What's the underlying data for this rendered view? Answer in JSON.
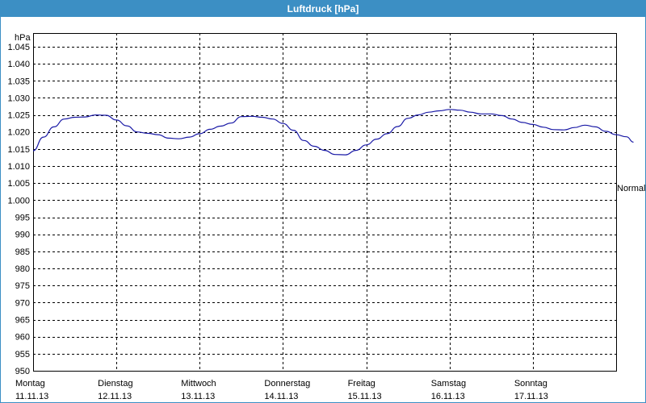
{
  "window": {
    "title": "Luftdruck [hPa]"
  },
  "chart_data": {
    "type": "line",
    "title": "Luftdruck [hPa]",
    "ylabel": "hPa",
    "ylim": [
      950,
      1049
    ],
    "yticks": [
      {
        "value": 1045,
        "label": "1.045"
      },
      {
        "value": 1040,
        "label": "1.040"
      },
      {
        "value": 1035,
        "label": "1.035"
      },
      {
        "value": 1030,
        "label": "1.030"
      },
      {
        "value": 1025,
        "label": "1.025"
      },
      {
        "value": 1020,
        "label": "1.020"
      },
      {
        "value": 1015,
        "label": "1.015"
      },
      {
        "value": 1010,
        "label": "1.010"
      },
      {
        "value": 1005,
        "label": "1.005"
      },
      {
        "value": 1000,
        "label": "1.000"
      },
      {
        "value": 995,
        "label": "995"
      },
      {
        "value": 990,
        "label": "990"
      },
      {
        "value": 985,
        "label": "985"
      },
      {
        "value": 980,
        "label": "980"
      },
      {
        "value": 975,
        "label": "975"
      },
      {
        "value": 970,
        "label": "970"
      },
      {
        "value": 965,
        "label": "965"
      },
      {
        "value": 960,
        "label": "960"
      },
      {
        "value": 955,
        "label": "955"
      },
      {
        "value": 950,
        "label": "950"
      }
    ],
    "xlim": [
      "2013-11-11",
      "2013-11-18"
    ],
    "days": [
      {
        "weekday": "Montag",
        "date": "11.11.13"
      },
      {
        "weekday": "Dienstag",
        "date": "12.11.13"
      },
      {
        "weekday": "Mittwoch",
        "date": "13.11.13"
      },
      {
        "weekday": "Donnerstag",
        "date": "14.11.13"
      },
      {
        "weekday": "Freitag",
        "date": "15.11.13"
      },
      {
        "weekday": "Samstag",
        "date": "16.11.13"
      },
      {
        "weekday": "Sonntag",
        "date": "17.11.13"
      }
    ],
    "reference_line": {
      "label": "Normal",
      "value": 1005
    },
    "grid": true,
    "series": [
      {
        "color": "#1a1aa6",
        "points": [
          [
            "2013-11-11 00:00",
            1014.5
          ],
          [
            "2013-11-11 03:00",
            1018.5
          ],
          [
            "2013-11-11 06:00",
            1021.5
          ],
          [
            "2013-11-11 09:00",
            1023.8
          ],
          [
            "2013-11-11 12:00",
            1024.3
          ],
          [
            "2013-11-11 15:00",
            1024.4
          ],
          [
            "2013-11-11 18:00",
            1025.0
          ],
          [
            "2013-11-11 21:00",
            1024.9
          ],
          [
            "2013-11-12 00:00",
            1023.5
          ],
          [
            "2013-11-12 03:00",
            1021.8
          ],
          [
            "2013-11-12 06:00",
            1020.0
          ],
          [
            "2013-11-12 09:00",
            1019.6
          ],
          [
            "2013-11-12 12:00",
            1019.2
          ],
          [
            "2013-11-12 15:00",
            1018.2
          ],
          [
            "2013-11-12 18:00",
            1018.0
          ],
          [
            "2013-11-12 21:00",
            1018.5
          ],
          [
            "2013-11-13 00:00",
            1019.5
          ],
          [
            "2013-11-13 03:00",
            1020.8
          ],
          [
            "2013-11-13 06:00",
            1021.7
          ],
          [
            "2013-11-13 09:00",
            1022.6
          ],
          [
            "2013-11-13 12:00",
            1024.5
          ],
          [
            "2013-11-13 15:00",
            1024.6
          ],
          [
            "2013-11-13 18:00",
            1024.3
          ],
          [
            "2013-11-13 21:00",
            1023.8
          ],
          [
            "2013-11-14 00:00",
            1022.5
          ],
          [
            "2013-11-14 03:00",
            1020.5
          ],
          [
            "2013-11-14 06:00",
            1017.5
          ],
          [
            "2013-11-14 09:00",
            1015.8
          ],
          [
            "2013-11-14 12:00",
            1014.6
          ],
          [
            "2013-11-14 15:00",
            1013.4
          ],
          [
            "2013-11-14 18:00",
            1013.3
          ],
          [
            "2013-11-14 21:00",
            1014.6
          ],
          [
            "2013-11-15 00:00",
            1016.2
          ],
          [
            "2013-11-15 03:00",
            1017.9
          ],
          [
            "2013-11-15 06:00",
            1019.5
          ],
          [
            "2013-11-15 09:00",
            1021.6
          ],
          [
            "2013-11-15 12:00",
            1024.0
          ],
          [
            "2013-11-15 15:00",
            1025.0
          ],
          [
            "2013-11-15 18:00",
            1025.8
          ],
          [
            "2013-11-15 21:00",
            1026.2
          ],
          [
            "2013-11-16 00:00",
            1026.6
          ],
          [
            "2013-11-16 03:00",
            1026.4
          ],
          [
            "2013-11-16 06:00",
            1025.8
          ],
          [
            "2013-11-16 09:00",
            1025.3
          ],
          [
            "2013-11-16 12:00",
            1025.3
          ],
          [
            "2013-11-16 15:00",
            1024.8
          ],
          [
            "2013-11-16 18:00",
            1023.8
          ],
          [
            "2013-11-16 21:00",
            1022.8
          ],
          [
            "2013-11-17 00:00",
            1022.2
          ],
          [
            "2013-11-17 03:00",
            1021.4
          ],
          [
            "2013-11-17 06:00",
            1020.7
          ],
          [
            "2013-11-17 09:00",
            1020.6
          ],
          [
            "2013-11-17 12:00",
            1021.3
          ],
          [
            "2013-11-17 15:00",
            1022.0
          ],
          [
            "2013-11-17 18:00",
            1021.5
          ],
          [
            "2013-11-17 21:00",
            1020.2
          ],
          [
            "2013-11-18 00:00",
            1019.2
          ],
          [
            "2013-11-18 03:00",
            1018.6
          ],
          [
            "2013-11-18 05:00",
            1017.0
          ]
        ]
      }
    ]
  }
}
